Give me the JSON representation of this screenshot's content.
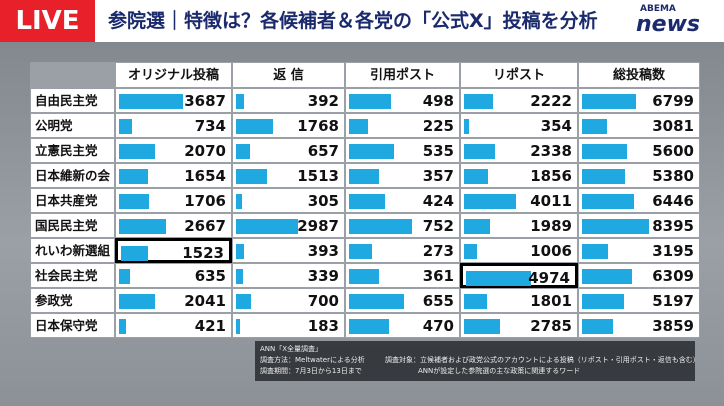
{
  "header": {
    "live": "LIVE",
    "title": "参院選｜特徴は？各候補者＆各党の「公式X」投稿を分析",
    "logo_top": "ABEMA",
    "logo_bottom": "news"
  },
  "table": {
    "columns": [
      "オリジナル投稿",
      "返 信",
      "引用ポスト",
      "リポスト",
      "総投稿数"
    ],
    "rows": [
      {
        "party": "自由民主党",
        "values": [
          3687,
          392,
          498,
          2222,
          6799
        ]
      },
      {
        "party": "公明党",
        "values": [
          734,
          1768,
          225,
          354,
          3081
        ]
      },
      {
        "party": "立憲民主党",
        "values": [
          2070,
          657,
          535,
          2338,
          5600
        ]
      },
      {
        "party": "日本維新の会",
        "values": [
          1654,
          1513,
          357,
          1856,
          5380
        ]
      },
      {
        "party": "日本共産党",
        "values": [
          1706,
          305,
          424,
          4011,
          6446
        ]
      },
      {
        "party": "国民民主党",
        "values": [
          2667,
          2987,
          752,
          1989,
          8395
        ]
      },
      {
        "party": "れいわ新選組",
        "values": [
          1523,
          393,
          273,
          1006,
          3195
        ]
      },
      {
        "party": "社会民主党",
        "values": [
          635,
          339,
          361,
          4974,
          6309
        ]
      },
      {
        "party": "参政党",
        "values": [
          2041,
          700,
          655,
          1801,
          5197
        ]
      },
      {
        "party": "日本保守党",
        "values": [
          421,
          183,
          470,
          2785,
          3859
        ]
      }
    ]
  },
  "notes": {
    "source": "ANN「X全量調査」",
    "method": "調査方法：Meltwaterによる分析",
    "period": "調査期間：7月3日から13日まで",
    "target": "調査対象：立候補者および政党公式のアカウントによる投稿（リポスト・引用ポスト・返信も含む）",
    "words": "ANNが設定した参院選の主な政策に関連するワード"
  }
}
